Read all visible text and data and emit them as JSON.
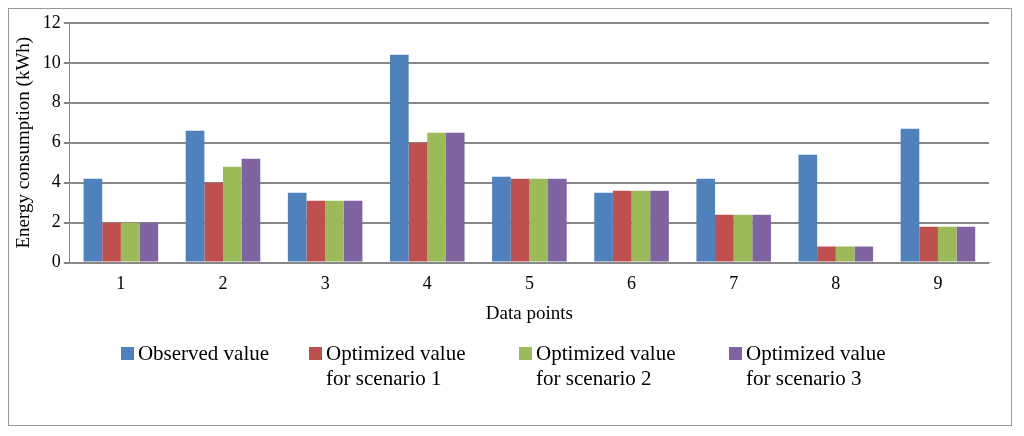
{
  "chart_data": {
    "type": "bar",
    "xlabel": "Data points",
    "ylabel": "Energy consumption (kWh)",
    "categories": [
      "1",
      "2",
      "3",
      "4",
      "5",
      "6",
      "7",
      "8",
      "9"
    ],
    "series": [
      {
        "name": "Observed value",
        "color": "#4f81bd",
        "values": [
          4.2,
          6.6,
          3.5,
          10.4,
          4.3,
          3.5,
          4.2,
          5.4,
          6.7
        ]
      },
      {
        "name": "Optimized value for scenario 1",
        "color": "#c0504d",
        "values": [
          2.0,
          4.0,
          3.1,
          6.0,
          4.2,
          3.6,
          2.4,
          0.8,
          1.8
        ]
      },
      {
        "name": "Optimized value for scenario 2",
        "color": "#9bbb59",
        "values": [
          2.0,
          4.8,
          3.1,
          6.5,
          4.2,
          3.6,
          2.4,
          0.8,
          1.8
        ]
      },
      {
        "name": "Optimized value for scenario 3",
        "color": "#8064a2",
        "values": [
          2.0,
          5.2,
          3.1,
          6.5,
          4.2,
          3.6,
          2.4,
          0.8,
          1.8
        ]
      }
    ],
    "ylim": [
      0,
      12
    ],
    "yticks": [
      0,
      2,
      4,
      6,
      8,
      10,
      12
    ],
    "grid": "y",
    "legend": "bottom"
  }
}
